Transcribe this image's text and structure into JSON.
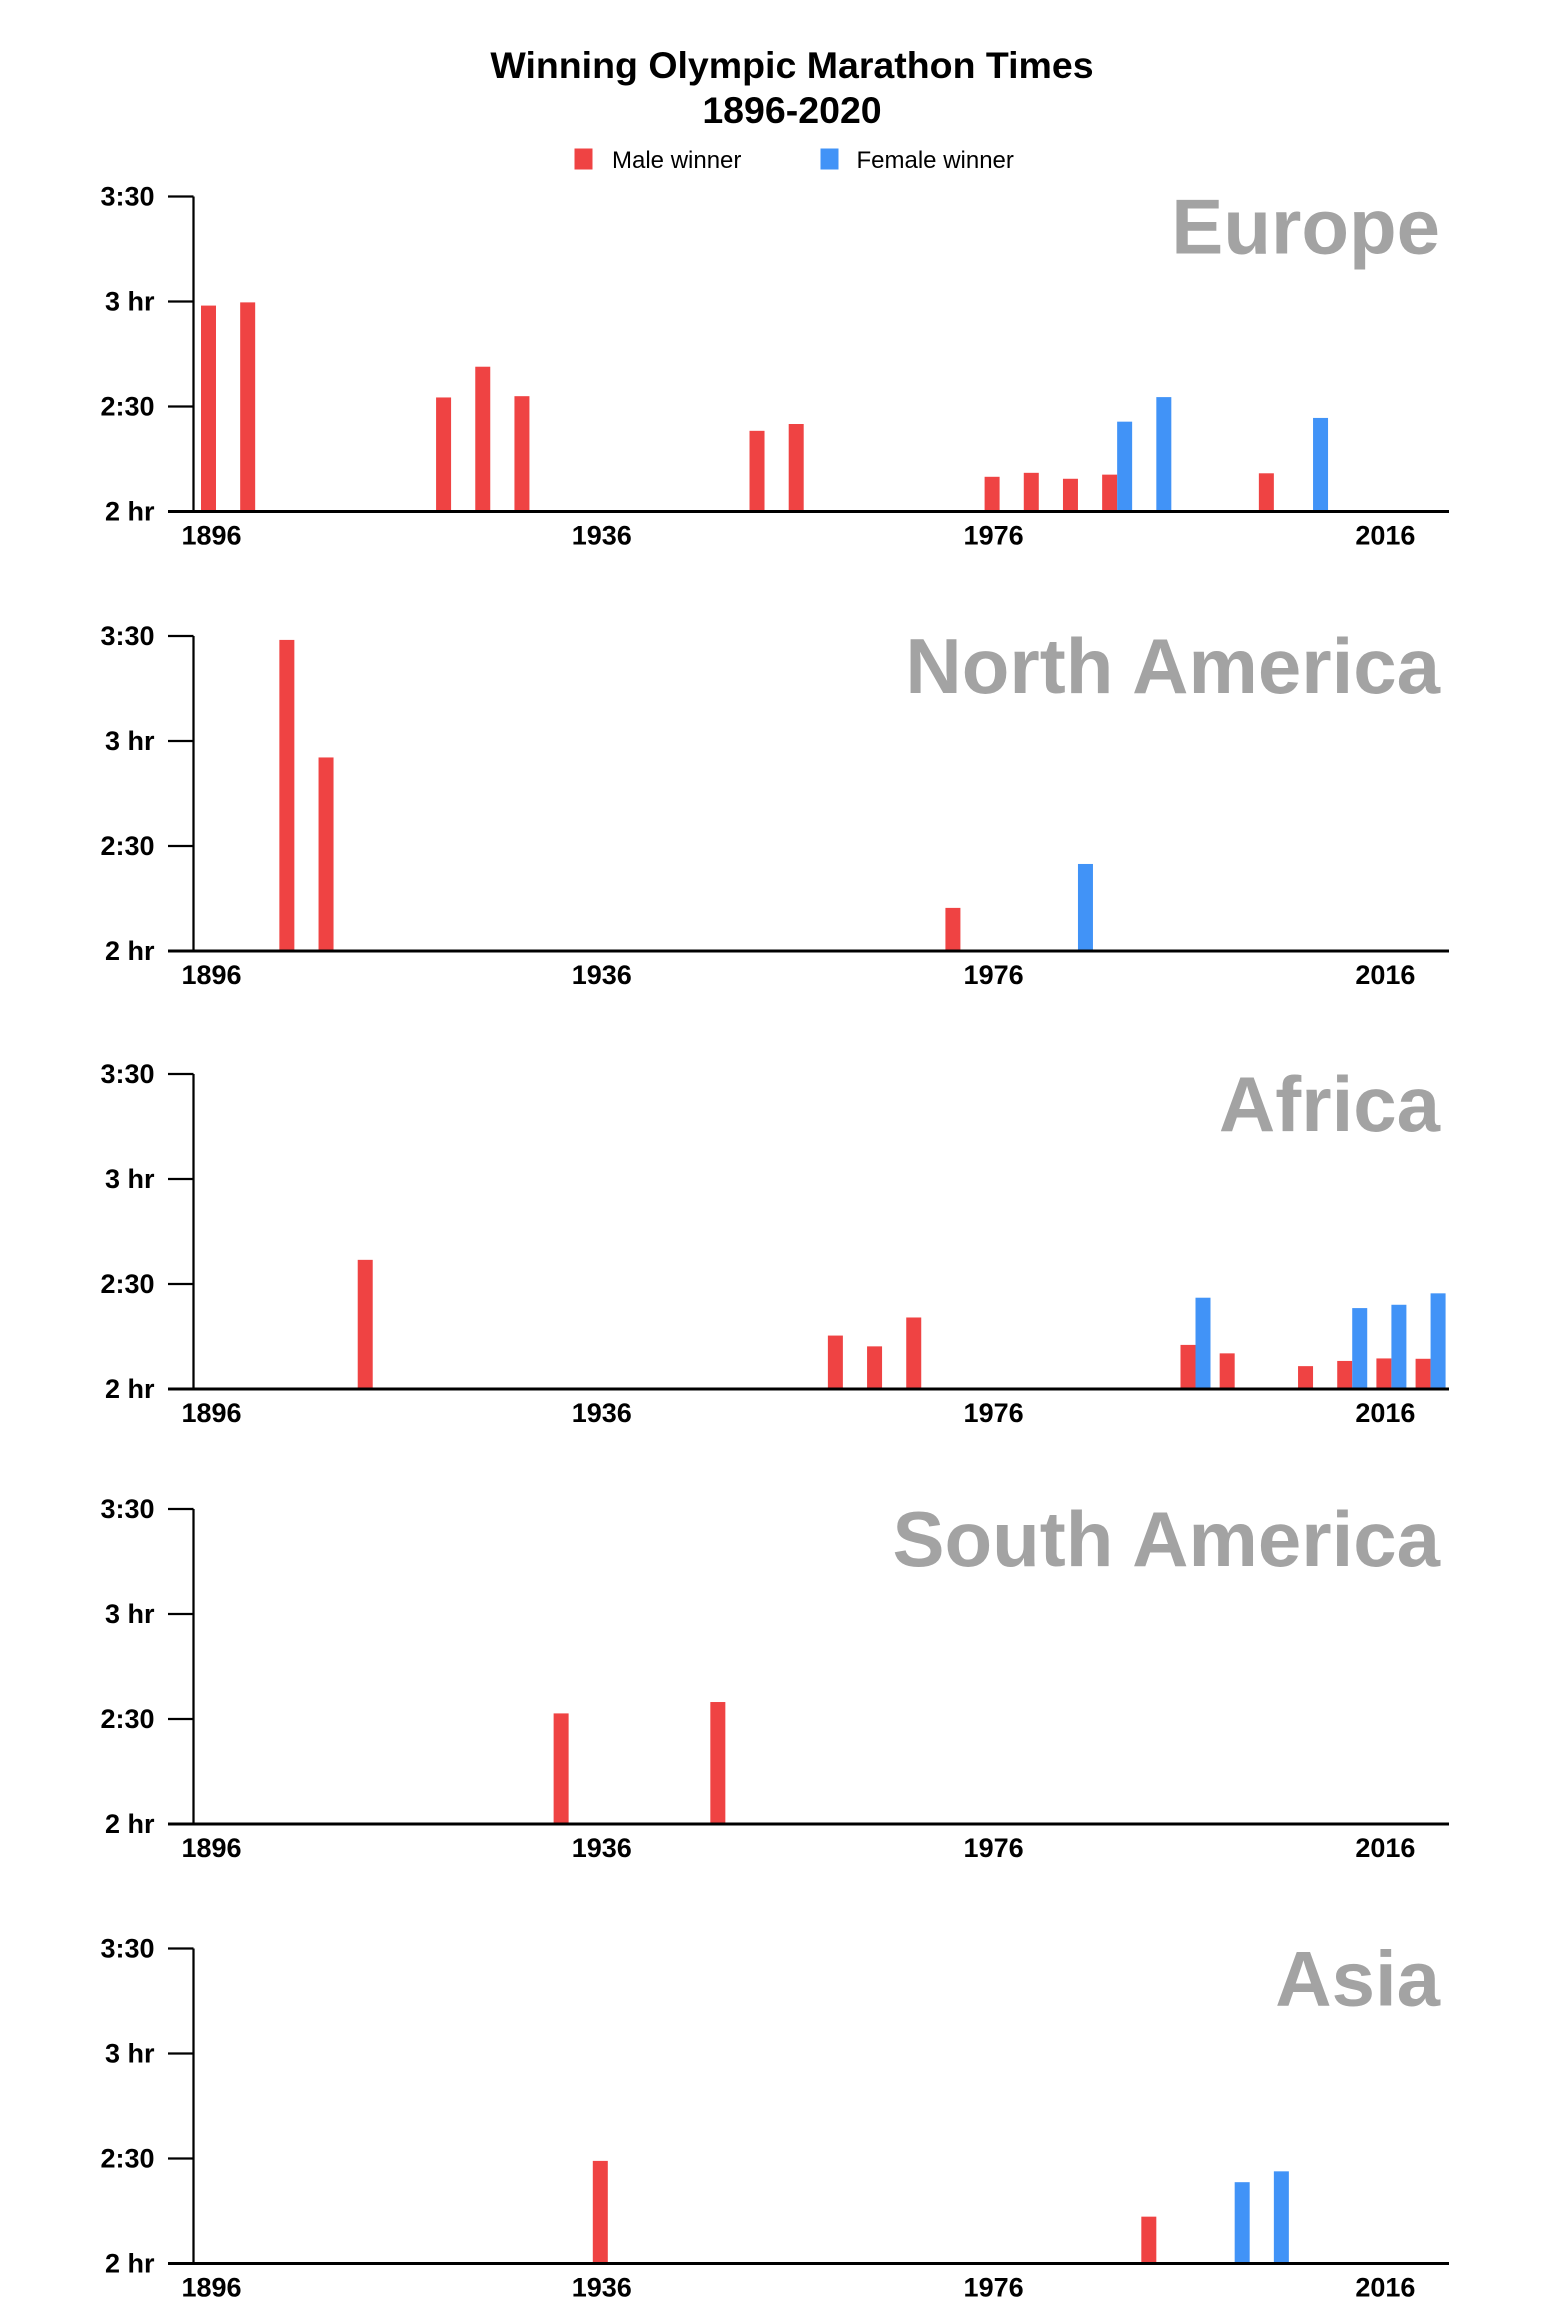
{
  "chart_data": {
    "type": "bar",
    "title": "Winning Olympic Marathon Times",
    "subtitle": "1896-2020",
    "legend": {
      "placement": "top-center",
      "entries": [
        {
          "key": "male",
          "label": "Male winner",
          "color": "#ef4343"
        },
        {
          "key": "female",
          "label": "Female winner",
          "color": "#4193f7"
        }
      ]
    },
    "y_ticks": [
      {
        "value": "2:00:00",
        "label": "2 hr"
      },
      {
        "value": "2:30:00",
        "label": "2:30"
      },
      {
        "value": "3:00:00",
        "label": "3 hr"
      },
      {
        "value": "3:30:00",
        "label": "3:30"
      }
    ],
    "ylim": [
      "2:00:00",
      "3:30:00"
    ],
    "x_ticks": [
      1896,
      1936,
      1976,
      2016
    ],
    "xlim": [
      1896,
      2020
    ],
    "grid": false,
    "panels": [
      {
        "region": "Europe",
        "male": [
          [
            1896,
            "2:58:50"
          ],
          [
            1900,
            "2:59:45"
          ],
          [
            1920,
            "2:32:35"
          ],
          [
            1924,
            "2:41:22"
          ],
          [
            1928,
            "2:32:57"
          ],
          [
            1952,
            "2:23:03"
          ],
          [
            1956,
            "2:25:00"
          ],
          [
            1976,
            "2:09:55"
          ],
          [
            1980,
            "2:11:03"
          ],
          [
            1984,
            "2:09:21"
          ],
          [
            1988,
            "2:10:32"
          ],
          [
            2004,
            "2:10:55"
          ]
        ],
        "female": [
          [
            1988,
            "2:25:40"
          ],
          [
            1992,
            "2:32:41"
          ],
          [
            2008,
            "2:26:44"
          ]
        ]
      },
      {
        "region": "North America",
        "male": [
          [
            1904,
            "3:28:53"
          ],
          [
            1908,
            "2:55:18"
          ],
          [
            1972,
            "2:12:19"
          ]
        ],
        "female": [
          [
            1984,
            "2:24:52"
          ]
        ]
      },
      {
        "region": "Africa",
        "male": [
          [
            1912,
            "2:36:54"
          ],
          [
            1960,
            "2:15:16"
          ],
          [
            1964,
            "2:12:11"
          ],
          [
            1968,
            "2:20:26"
          ],
          [
            1996,
            "2:12:36"
          ],
          [
            2000,
            "2:10:11"
          ],
          [
            2008,
            "2:06:32"
          ],
          [
            2012,
            "2:08:01"
          ],
          [
            2016,
            "2:08:44"
          ],
          [
            2020,
            "2:08:38"
          ]
        ],
        "female": [
          [
            1996,
            "2:26:05"
          ],
          [
            2012,
            "2:23:07"
          ],
          [
            2016,
            "2:24:04"
          ],
          [
            2020,
            "2:27:20"
          ]
        ]
      },
      {
        "region": "South America",
        "male": [
          [
            1932,
            "2:31:36"
          ],
          [
            1948,
            "2:34:51"
          ]
        ],
        "female": []
      },
      {
        "region": "Asia",
        "male": [
          [
            1936,
            "2:29:19"
          ],
          [
            1992,
            "2:13:23"
          ]
        ],
        "female": [
          [
            2000,
            "2:23:14"
          ],
          [
            2004,
            "2:26:20"
          ]
        ]
      }
    ]
  }
}
